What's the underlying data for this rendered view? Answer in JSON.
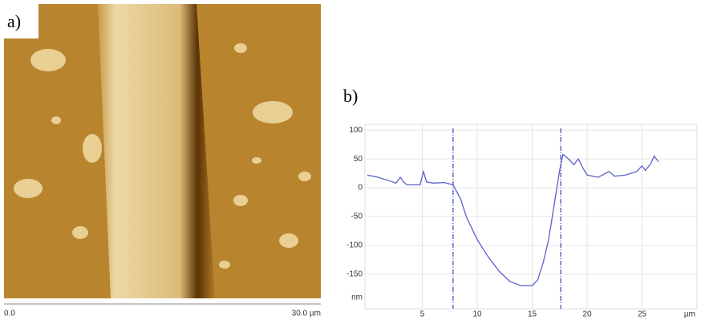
{
  "panel_a": {
    "label": "a)",
    "scale_start": "0.0",
    "scale_end": "30.0 µm"
  },
  "chart_data": {
    "type": "line",
    "panel_label": "b)",
    "x_label": "µm",
    "y_label": "nm",
    "xlim": [
      0,
      30
    ],
    "ylim": [
      -210,
      110
    ],
    "xticks": [
      5,
      10,
      15,
      20,
      25
    ],
    "yticks": [
      100,
      50,
      0,
      -50,
      -100,
      -150
    ],
    "grid": true,
    "markers": [
      7.8,
      17.6
    ],
    "series": [
      {
        "color": "#5a62c8",
        "x": [
          0,
          1,
          2,
          2.6,
          3,
          3.3,
          3.6,
          4.8,
          5.1,
          5.4,
          6,
          7,
          7.8,
          8.5,
          9,
          10,
          11,
          12,
          13,
          14,
          15,
          15.5,
          16,
          16.5,
          17,
          17.5,
          17.8,
          18.3,
          18.8,
          19.2,
          19.6,
          20,
          21,
          22,
          22.5,
          23.5,
          24.5,
          25,
          25.3,
          25.8,
          26.1,
          26.5
        ],
        "values": [
          22,
          18,
          12,
          8,
          18,
          10,
          5,
          5,
          28,
          10,
          8,
          9,
          5,
          -20,
          -50,
          -90,
          -120,
          -145,
          -163,
          -170,
          -170,
          -160,
          -130,
          -90,
          -30,
          30,
          58,
          50,
          40,
          50,
          35,
          22,
          18,
          28,
          20,
          22,
          28,
          38,
          30,
          42,
          55,
          45
        ]
      }
    ]
  }
}
